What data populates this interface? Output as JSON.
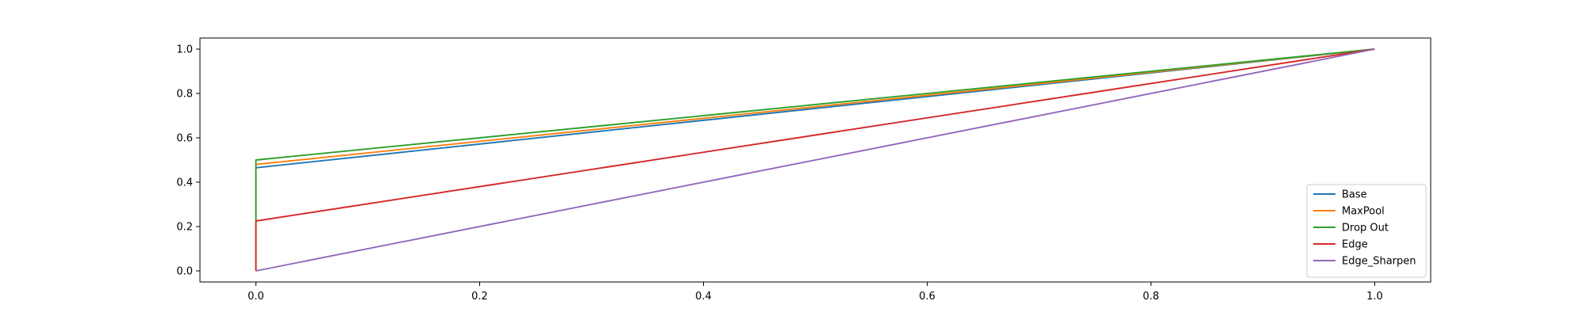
{
  "chart_data": {
    "type": "line",
    "title": "",
    "xlabel": "",
    "ylabel": "",
    "xlim": [
      -0.05,
      1.05
    ],
    "ylim": [
      -0.05,
      1.05
    ],
    "grid": false,
    "legend_position": "bottom-right",
    "x_ticks": [
      {
        "value": 0.0,
        "label": "0.0"
      },
      {
        "value": 0.2,
        "label": "0.2"
      },
      {
        "value": 0.4,
        "label": "0.4"
      },
      {
        "value": 0.6,
        "label": "0.6"
      },
      {
        "value": 0.8,
        "label": "0.8"
      },
      {
        "value": 1.0,
        "label": "1.0"
      }
    ],
    "y_ticks": [
      {
        "value": 0.0,
        "label": "0.0"
      },
      {
        "value": 0.2,
        "label": "0.2"
      },
      {
        "value": 0.4,
        "label": "0.4"
      },
      {
        "value": 0.6,
        "label": "0.6"
      },
      {
        "value": 0.8,
        "label": "0.8"
      },
      {
        "value": 1.0,
        "label": "1.0"
      }
    ],
    "series": [
      {
        "name": "Base",
        "color": "#1f77b4",
        "x": [
          0.0,
          0.0,
          1.0
        ],
        "y": [
          0.0,
          0.465,
          1.0
        ]
      },
      {
        "name": "MaxPool",
        "color": "#ff7f0e",
        "x": [
          0.0,
          0.0,
          1.0
        ],
        "y": [
          0.0,
          0.48,
          1.0
        ]
      },
      {
        "name": "Drop Out",
        "color": "#2ca02c",
        "x": [
          0.0,
          0.0,
          1.0
        ],
        "y": [
          0.0,
          0.5,
          1.0
        ]
      },
      {
        "name": "Edge",
        "color": "#d62728",
        "x": [
          0.0,
          0.0,
          1.0
        ],
        "y": [
          0.0,
          0.225,
          1.0
        ]
      },
      {
        "name": "Edge_Sharpen",
        "color": "#9467bd",
        "x": [
          0.0,
          1.0
        ],
        "y": [
          0.0,
          1.0
        ]
      }
    ]
  }
}
